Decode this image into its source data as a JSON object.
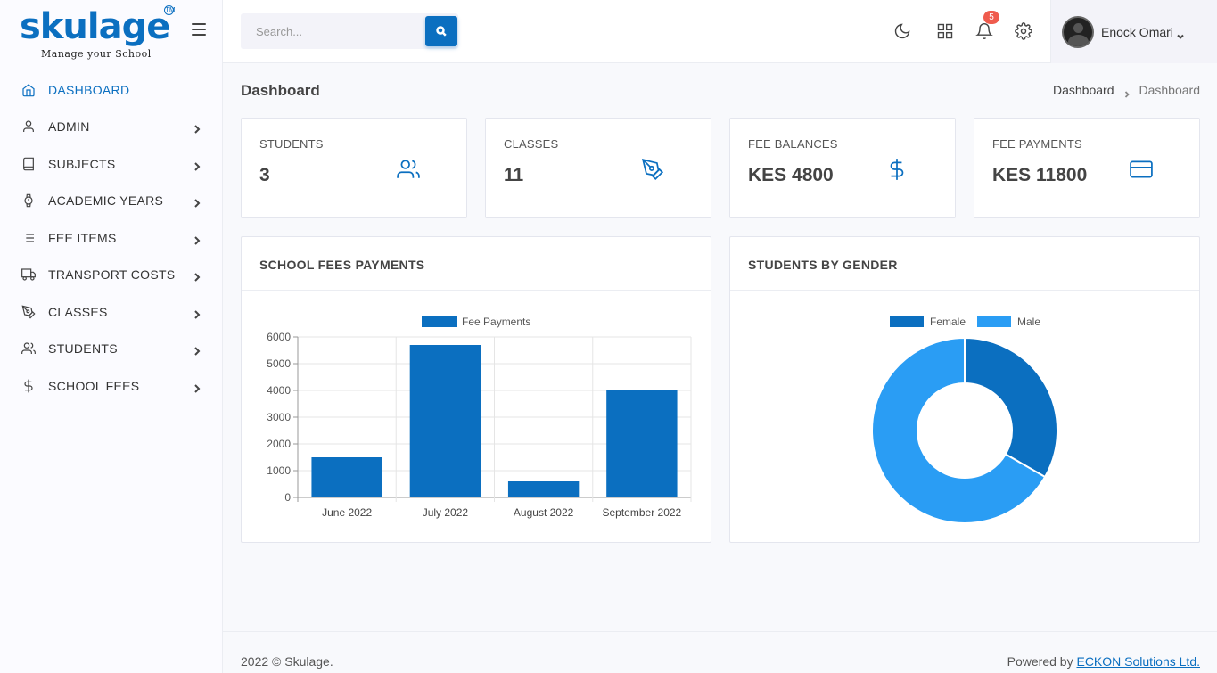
{
  "brand": {
    "name": "skulage",
    "tm": "TM",
    "tagline": "Manage your School"
  },
  "sidebar": {
    "items": [
      {
        "label": "DASHBOARD",
        "icon": "home-icon",
        "active": true
      },
      {
        "label": "ADMIN",
        "icon": "user-icon"
      },
      {
        "label": "SUBJECTS",
        "icon": "book-icon"
      },
      {
        "label": "ACADEMIC YEARS",
        "icon": "watch-icon"
      },
      {
        "label": "FEE ITEMS",
        "icon": "list-icon"
      },
      {
        "label": "TRANSPORT COSTS",
        "icon": "truck-icon"
      },
      {
        "label": "CLASSES",
        "icon": "pen-tool-icon"
      },
      {
        "label": "STUDENTS",
        "icon": "users-icon"
      },
      {
        "label": "SCHOOL FEES",
        "icon": "dollar-icon"
      }
    ]
  },
  "search": {
    "placeholder": "Search...",
    "value": ""
  },
  "notifications": {
    "count": "5"
  },
  "user": {
    "name": "Enock Omari"
  },
  "page": {
    "title": "Dashboard",
    "breadcrumb": [
      "Dashboard",
      "Dashboard"
    ]
  },
  "stats": [
    {
      "label": "STUDENTS",
      "value": "3",
      "icon": "users-icon"
    },
    {
      "label": "CLASSES",
      "value": "11",
      "icon": "pen-tool-icon"
    },
    {
      "label": "FEE BALANCES",
      "value": "KES 4800",
      "icon": "dollar-icon"
    },
    {
      "label": "FEE PAYMENTS",
      "value": "KES 11800",
      "icon": "credit-card-icon"
    }
  ],
  "charts": {
    "fees_title": "SCHOOL FEES PAYMENTS",
    "gender_title": "STUDENTS BY GENDER"
  },
  "chart_data": [
    {
      "type": "bar",
      "categories": [
        "June 2022",
        "July 2022",
        "August 2022",
        "September 2022"
      ],
      "series": [
        {
          "name": "Fee Payments",
          "values": [
            1500,
            5700,
            600,
            4000
          ],
          "color": "#0b6fc0"
        }
      ],
      "ylim": [
        0,
        6000
      ],
      "yticks": [
        0,
        1000,
        2000,
        3000,
        4000,
        5000,
        6000
      ],
      "grid": true,
      "legend": "top"
    },
    {
      "type": "pie",
      "donut": true,
      "labels": [
        "Female",
        "Male"
      ],
      "values": [
        1,
        2
      ],
      "colors": [
        "#0b6fc0",
        "#2a9df4"
      ],
      "legend": "top"
    }
  ],
  "footer": {
    "copyright": "2022 © Skulage.",
    "powered_by": "Powered by",
    "company": "ECKON Solutions Ltd."
  },
  "colors": {
    "accent": "#0b6fc0",
    "light_accent": "#2a9df4",
    "badge": "#ef5b4d"
  }
}
